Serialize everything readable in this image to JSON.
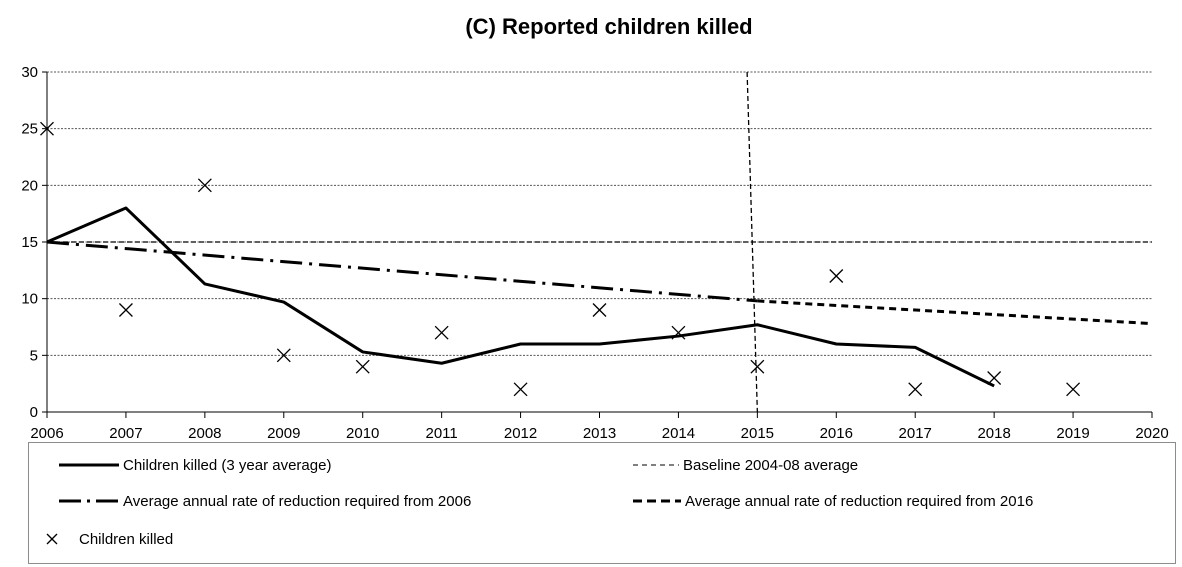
{
  "chart_data": {
    "type": "line",
    "title": "(C) Reported children killed",
    "xlabel": "",
    "ylabel": "",
    "xlim": [
      2006,
      2020
    ],
    "ylim": [
      0,
      30
    ],
    "x_ticks": [
      "2006",
      "2007",
      "2008",
      "2009",
      "2010",
      "2011",
      "2012",
      "2013",
      "2014",
      "2015",
      "2016",
      "2017",
      "2018",
      "2019",
      "2020"
    ],
    "y_ticks": [
      "0",
      "5",
      "10",
      "15",
      "20",
      "25",
      "30"
    ],
    "y_tick_values": [
      0,
      5,
      10,
      15,
      20,
      25,
      30
    ],
    "grid": true,
    "legend_position": "bottom",
    "series": [
      {
        "name": "Children killed (3 year average)",
        "style": "solid",
        "x": [
          2006,
          2007,
          2008,
          2009,
          2010,
          2011,
          2012,
          2013,
          2014,
          2015,
          2016,
          2017,
          2018
        ],
        "values": [
          15,
          18,
          11.3,
          9.7,
          5.3,
          4.3,
          6,
          6,
          6.7,
          7.7,
          6,
          5.7,
          2.3
        ]
      },
      {
        "name": "Baseline 2004-08 average",
        "style": "dash-short",
        "x": [
          2006,
          2020
        ],
        "values": [
          15,
          15
        ]
      },
      {
        "name": "Average annual rate of reduction required from 2006",
        "style": "dash-dot",
        "x": [
          2006,
          2015
        ],
        "values": [
          15,
          9.8
        ]
      },
      {
        "name": "Average annual rate of reduction required from 2016",
        "style": "dash",
        "x": [
          2015,
          2020
        ],
        "values": [
          9.8,
          7.8
        ]
      },
      {
        "name": "Children killed",
        "style": "marker-x",
        "x": [
          2006,
          2007,
          2008,
          2009,
          2010,
          2011,
          2012,
          2013,
          2014,
          2015,
          2016,
          2017,
          2018,
          2019
        ],
        "values": [
          25,
          9,
          20,
          5,
          4,
          7,
          2,
          9,
          7,
          4,
          12,
          2,
          3,
          2
        ]
      }
    ],
    "annotations": [
      {
        "type": "vertical-line",
        "style": "dash",
        "x_top": 2014.87,
        "x_bottom": 2015.0,
        "y_top": 30,
        "y_bottom": 0
      }
    ]
  }
}
